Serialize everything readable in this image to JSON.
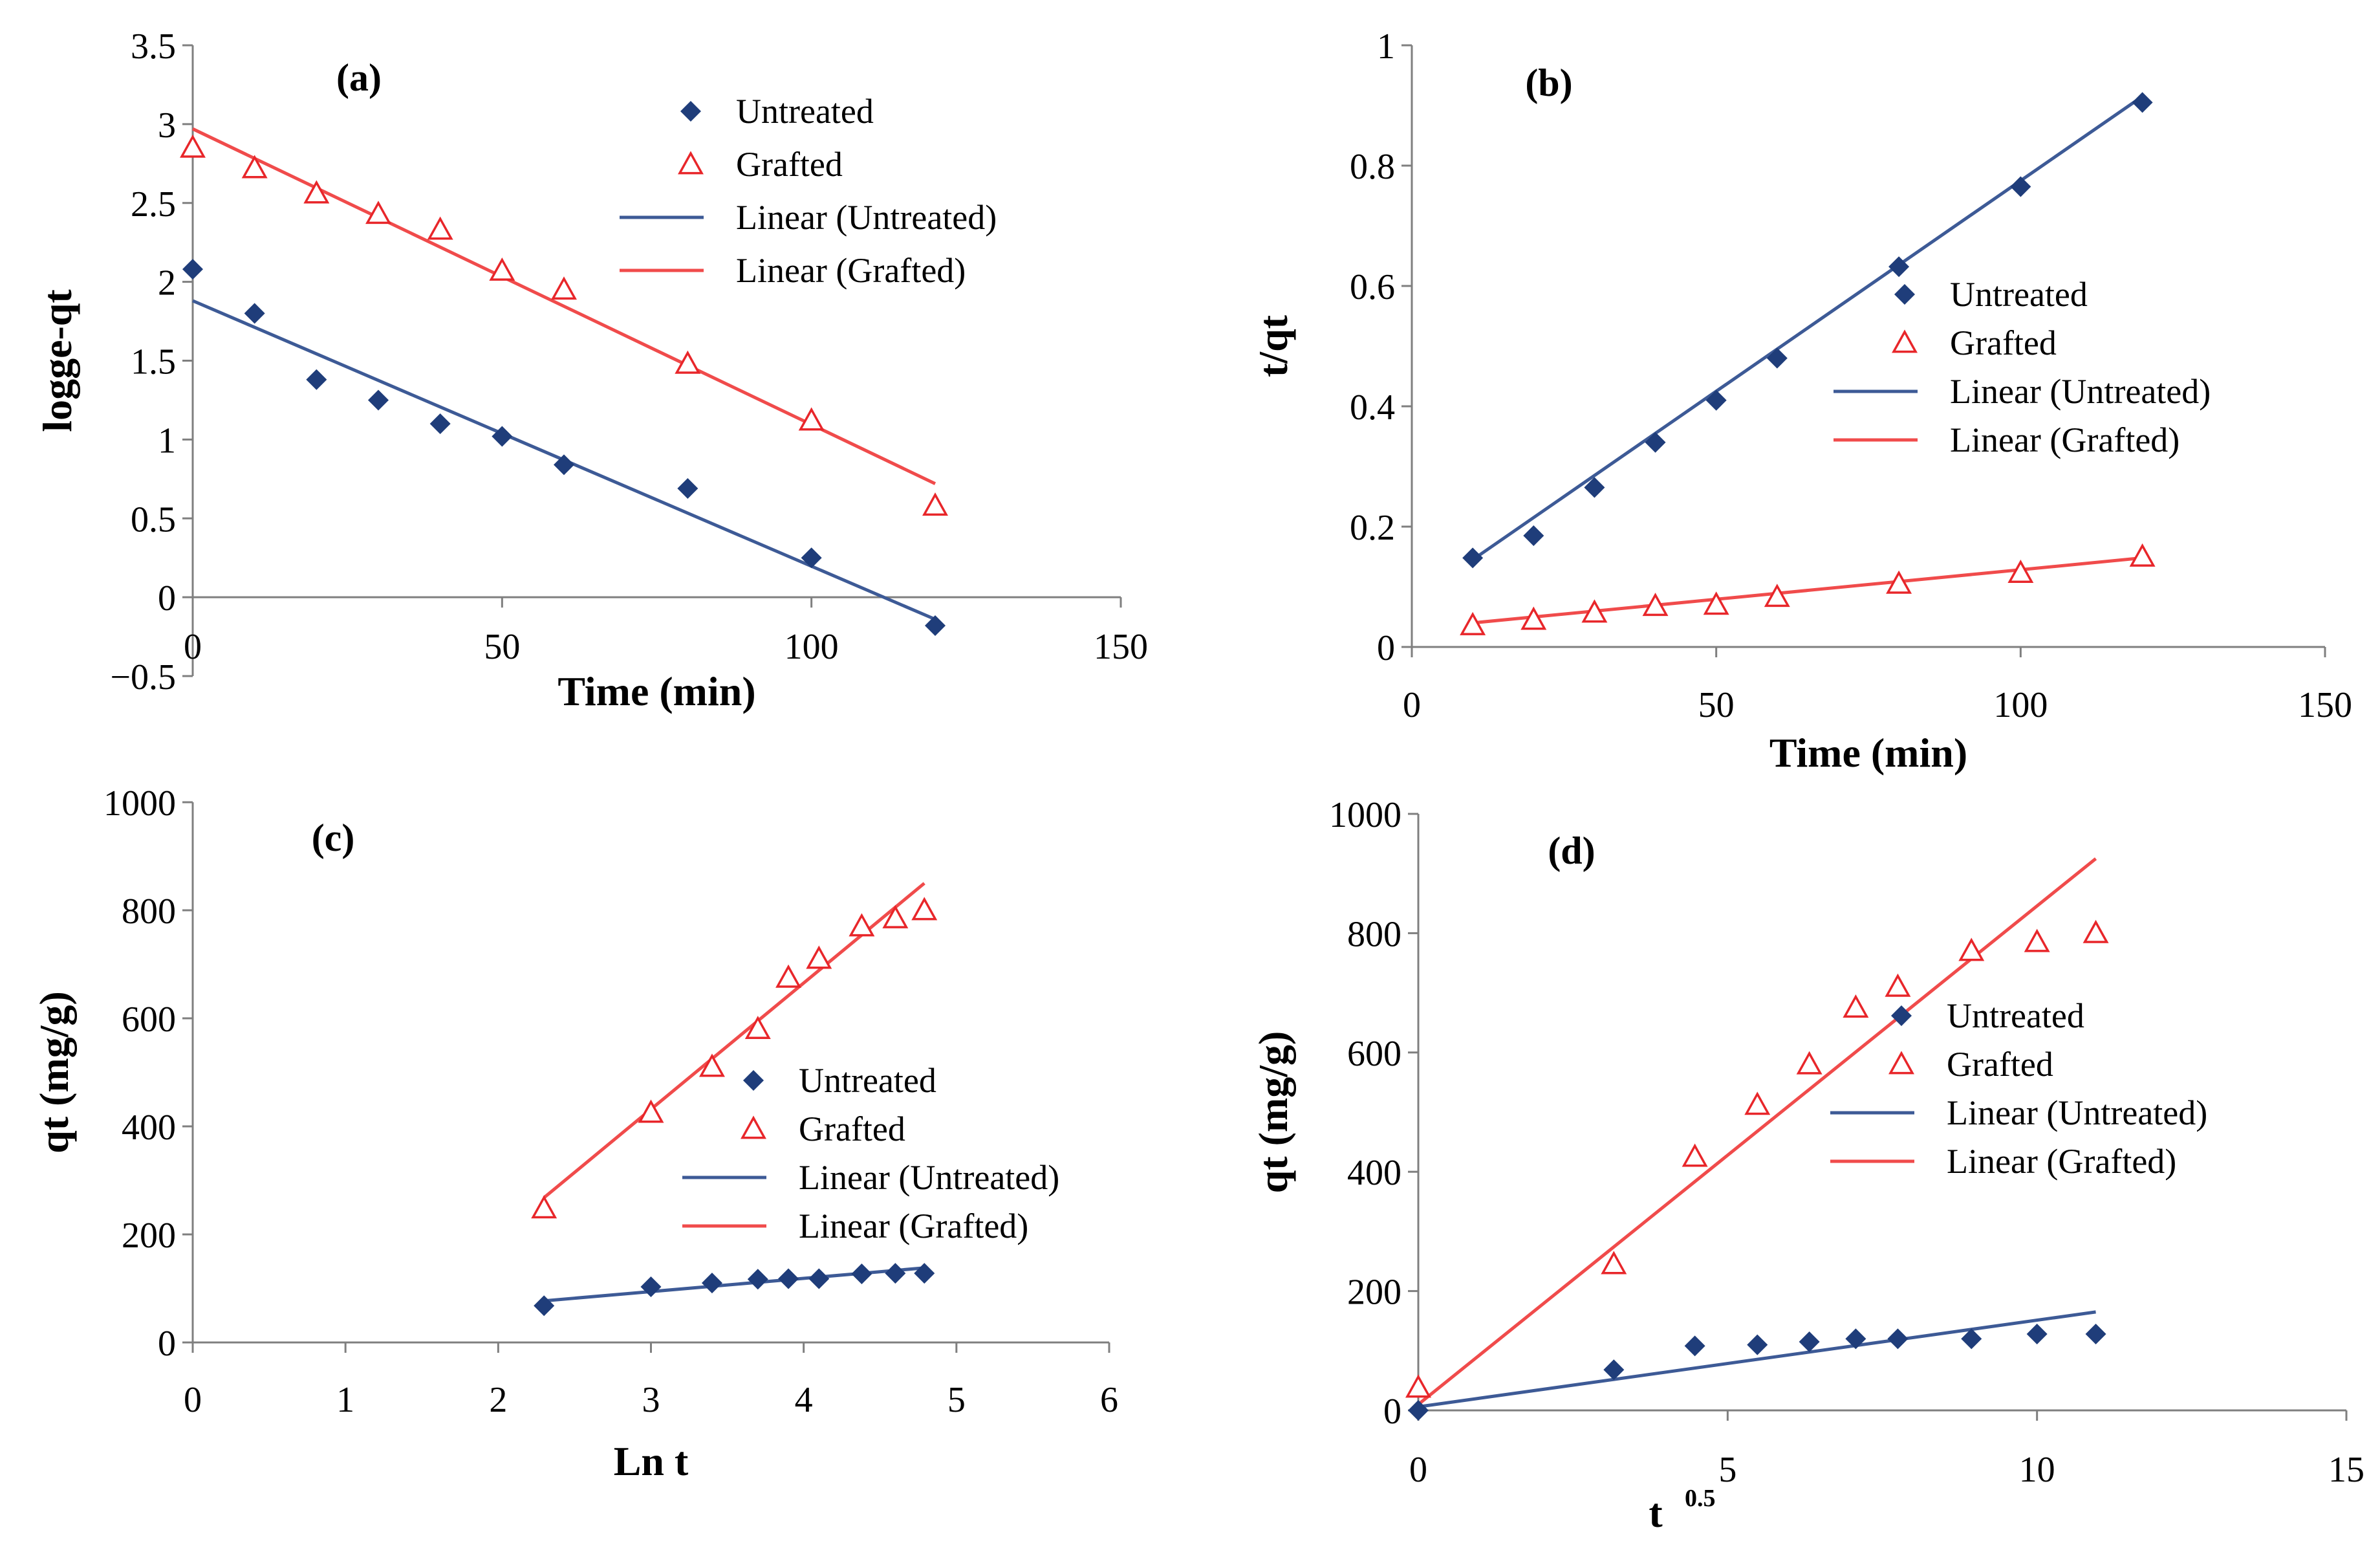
{
  "chart_data": [
    {
      "panel_label": "(a)",
      "type": "scatter",
      "xlabel": "Time (min)",
      "ylabel": "logge-qt",
      "xlim": [
        0,
        150
      ],
      "ylim": [
        -0.5,
        3.5
      ],
      "x_ticks": [
        "0",
        "50",
        "100",
        "150"
      ],
      "y_ticks": [
        "-0.5",
        "0",
        "0.5",
        "1",
        "1.5",
        "2",
        "2.5",
        "3",
        "3.5"
      ],
      "legend": [
        "Untreated",
        "Grafted",
        "Linear (Untreated)",
        "Linear (Grafted)"
      ],
      "series": [
        {
          "name": "Untreated",
          "marker": "diamond",
          "color": "#1f3d7a",
          "x": [
            0,
            10,
            20,
            30,
            40,
            50,
            60,
            80,
            100,
            120
          ],
          "y": [
            2.08,
            1.8,
            1.38,
            1.25,
            1.1,
            1.02,
            0.84,
            0.69,
            0.25,
            -0.18
          ]
        },
        {
          "name": "Grafted",
          "marker": "triangle",
          "color": "#e8262a",
          "x": [
            0,
            10,
            20,
            30,
            40,
            50,
            60,
            80,
            100,
            120
          ],
          "y": [
            2.85,
            2.72,
            2.56,
            2.43,
            2.33,
            2.07,
            1.95,
            1.48,
            1.12,
            0.58
          ]
        }
      ],
      "fits": [
        {
          "name": "Linear (Untreated)",
          "color": "#3d5a96",
          "x": [
            0,
            120
          ],
          "y": [
            1.88,
            -0.14
          ]
        },
        {
          "name": "Linear (Grafted)",
          "color": "#f04b4b",
          "x": [
            0,
            120
          ],
          "y": [
            2.97,
            0.72
          ]
        }
      ]
    },
    {
      "panel_label": "(b)",
      "type": "scatter",
      "xlabel": "Time (min)",
      "ylabel": "t/qt",
      "xlim": [
        0,
        150
      ],
      "ylim": [
        0,
        1
      ],
      "x_ticks": [
        "0",
        "50",
        "100",
        "150"
      ],
      "y_ticks": [
        "0",
        "0.2",
        "0.4",
        "0.6",
        "0.8",
        "1"
      ],
      "legend": [
        "Untreated",
        "Grafted",
        "Linear (Untreated)",
        "Linear (Grafted)"
      ],
      "series": [
        {
          "name": "Untreated",
          "marker": "diamond",
          "color": "#1f3d7a",
          "x": [
            10,
            20,
            30,
            40,
            50,
            60,
            80,
            100,
            120
          ],
          "y": [
            0.148,
            0.185,
            0.265,
            0.34,
            0.41,
            0.48,
            0.632,
            0.765,
            0.905
          ]
        },
        {
          "name": "Grafted",
          "marker": "triangle",
          "color": "#e8262a",
          "x": [
            10,
            20,
            30,
            40,
            50,
            60,
            80,
            100,
            120
          ],
          "y": [
            0.036,
            0.045,
            0.057,
            0.068,
            0.07,
            0.083,
            0.105,
            0.123,
            0.15
          ]
        }
      ],
      "fits": [
        {
          "name": "Linear (Untreated)",
          "color": "#3d5a96",
          "x": [
            10,
            120
          ],
          "y": [
            0.145,
            0.915
          ]
        },
        {
          "name": "Linear (Grafted)",
          "color": "#f04b4b",
          "x": [
            10,
            120
          ],
          "y": [
            0.04,
            0.148
          ]
        }
      ]
    },
    {
      "panel_label": "(c)",
      "type": "scatter",
      "xlabel": "Ln t",
      "ylabel": "qt (mg/g)",
      "xlim": [
        0,
        6
      ],
      "ylim": [
        0,
        1000
      ],
      "x_ticks": [
        "0",
        "1",
        "2",
        "3",
        "4",
        "5",
        "6"
      ],
      "y_ticks": [
        "0",
        "200",
        "400",
        "600",
        "800",
        "1000"
      ],
      "legend": [
        "Untreated",
        "Grafted",
        "Linear (Untreated)",
        "Linear (Grafted)"
      ],
      "series": [
        {
          "name": "Untreated",
          "marker": "diamond",
          "color": "#1f3d7a",
          "x": [
            2.3,
            3.0,
            3.4,
            3.7,
            3.9,
            4.1,
            4.38,
            4.6,
            4.79
          ],
          "y": [
            68,
            103,
            110,
            117,
            118,
            118,
            127,
            128,
            128
          ]
        },
        {
          "name": "Grafted",
          "marker": "triangle",
          "color": "#e8262a",
          "x": [
            2.3,
            3.0,
            3.4,
            3.7,
            3.9,
            4.1,
            4.38,
            4.6,
            4.79
          ],
          "y": [
            248,
            425,
            510,
            580,
            675,
            710,
            770,
            785,
            800
          ]
        }
      ],
      "fits": [
        {
          "name": "Linear (Untreated)",
          "color": "#3d5a96",
          "x": [
            2.3,
            4.79
          ],
          "y": [
            77,
            138
          ]
        },
        {
          "name": "Linear (Grafted)",
          "color": "#f04b4b",
          "x": [
            2.3,
            4.79
          ],
          "y": [
            268,
            850
          ]
        }
      ]
    },
    {
      "panel_label": "(d)",
      "type": "scatter",
      "xlabel": "t",
      "xlabel_superscript": "0.5",
      "ylabel": "qt (mg/g)",
      "xlim": [
        0,
        15
      ],
      "ylim": [
        0,
        1000
      ],
      "x_ticks": [
        "0",
        "5",
        "10",
        "15"
      ],
      "y_ticks": [
        "0",
        "200",
        "400",
        "600",
        "800",
        "1000"
      ],
      "legend": [
        "Untreated",
        "Grafted",
        "Linear (Untreated)",
        "Linear (Grafted)"
      ],
      "series": [
        {
          "name": "Untreated",
          "marker": "diamond",
          "color": "#1f3d7a",
          "x": [
            0,
            3.16,
            4.47,
            5.48,
            6.32,
            7.07,
            7.75,
            8.94,
            10.0,
            10.95
          ],
          "y": [
            0,
            68,
            108,
            110,
            115,
            120,
            120,
            120,
            128,
            128
          ]
        },
        {
          "name": "Grafted",
          "marker": "triangle",
          "color": "#e8262a",
          "x": [
            0,
            3.16,
            4.47,
            5.48,
            6.32,
            7.07,
            7.75,
            8.94,
            10.0,
            10.95
          ],
          "y": [
            38,
            245,
            425,
            512,
            580,
            675,
            710,
            770,
            785,
            800
          ]
        }
      ],
      "fits": [
        {
          "name": "Linear (Untreated)",
          "color": "#3d5a96",
          "x": [
            0,
            10.95
          ],
          "y": [
            6,
            165
          ]
        },
        {
          "name": "Linear (Grafted)",
          "color": "#f04b4b",
          "x": [
            0,
            10.95
          ],
          "y": [
            10,
            925
          ]
        }
      ]
    }
  ]
}
